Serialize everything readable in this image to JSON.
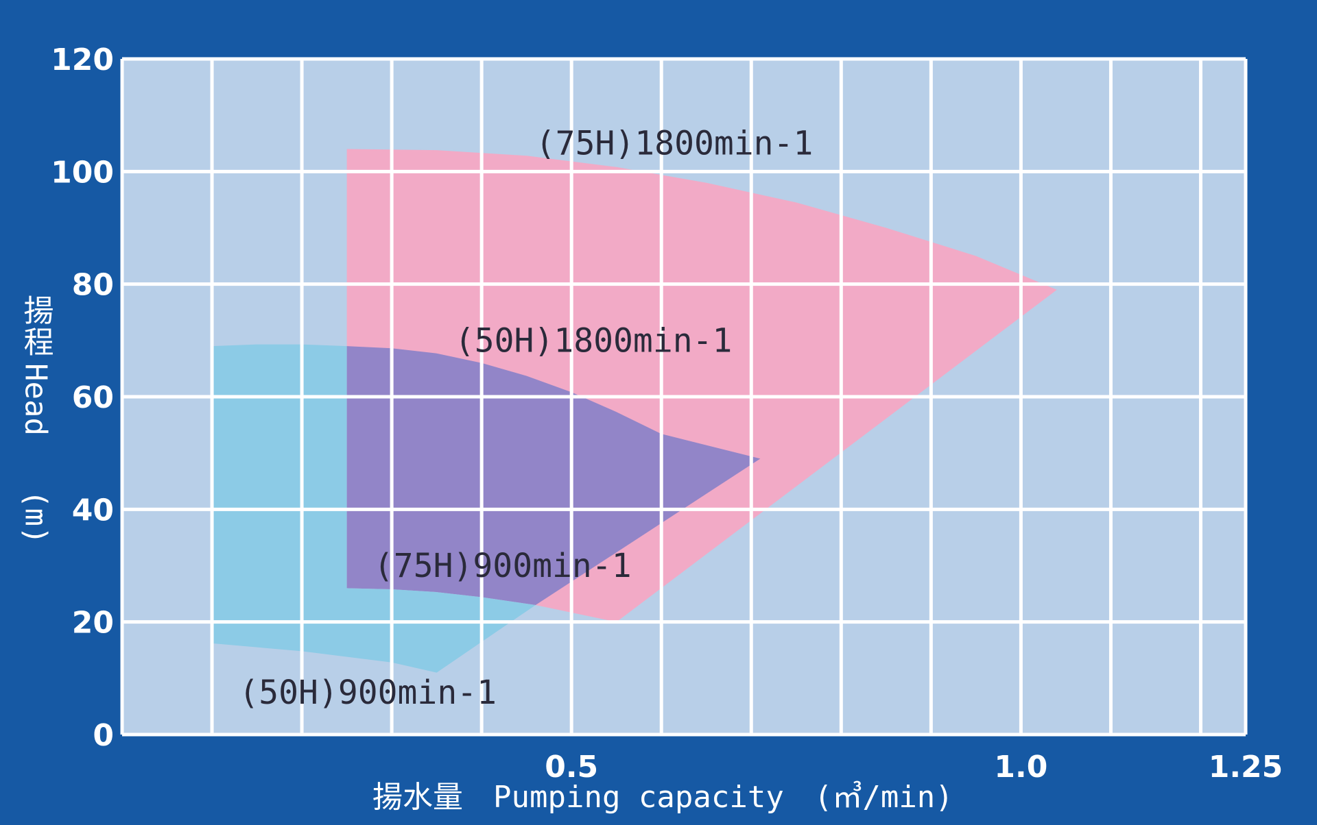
{
  "chart_data": {
    "type": "area",
    "xlabel": "揚水量　Pumping capacity　(㎥/min)",
    "ylabel_jp": "揚程",
    "ylabel_en": "Head",
    "ylabel_unit": "(m)",
    "xlim": [
      0,
      1.25
    ],
    "ylim": [
      0,
      120
    ],
    "x_ticks": [
      {
        "value": 0.5,
        "label": "0.5"
      },
      {
        "value": 1.0,
        "label": "1.0"
      },
      {
        "value": 1.25,
        "label": "1.25"
      }
    ],
    "y_ticks": [
      {
        "value": 0,
        "label": "0"
      },
      {
        "value": 20,
        "label": "20"
      },
      {
        "value": 40,
        "label": "40"
      },
      {
        "value": 60,
        "label": "60"
      },
      {
        "value": 80,
        "label": "80"
      },
      {
        "value": 100,
        "label": "100"
      },
      {
        "value": 120,
        "label": "120"
      }
    ],
    "grid": true,
    "grid_x_step": 0.1,
    "grid_y_step": 20,
    "colors": {
      "background": "#1659a4",
      "plot": "#b8cfe8",
      "grid": "#ffffff",
      "text": "#ffffff",
      "label_text": "#2a2a3a"
    },
    "series": [
      {
        "name": "(75H)1800min-1",
        "color": "#f2aac6",
        "label_at": [
          0.46,
          103
        ],
        "boundary": [
          [
            0.25,
            104
          ],
          [
            0.35,
            103.8
          ],
          [
            0.45,
            102.8
          ],
          [
            0.55,
            100.8
          ],
          [
            0.65,
            98
          ],
          [
            0.75,
            94.5
          ],
          [
            0.85,
            90
          ],
          [
            0.95,
            85
          ],
          [
            1.04,
            79
          ],
          [
            0.55,
            20
          ],
          [
            0.46,
            23
          ],
          [
            0.4,
            24.4
          ],
          [
            0.35,
            25.3
          ],
          [
            0.3,
            25.8
          ],
          [
            0.25,
            26
          ],
          [
            0.25,
            69
          ]
        ]
      },
      {
        "name": "(50H)1800min-1",
        "color": "#9285c8",
        "label_at": [
          0.37,
          68
        ],
        "boundary": [
          [
            0.25,
            69
          ],
          [
            0.3,
            68.6
          ],
          [
            0.35,
            67.7
          ],
          [
            0.4,
            66
          ],
          [
            0.45,
            63.7
          ],
          [
            0.5,
            60.8
          ],
          [
            0.55,
            57.3
          ],
          [
            0.6,
            53.4
          ],
          [
            0.71,
            49
          ],
          [
            0.46,
            23
          ],
          [
            0.4,
            24.4
          ],
          [
            0.35,
            25.3
          ],
          [
            0.3,
            25.8
          ],
          [
            0.25,
            26
          ]
        ]
      },
      {
        "name": "(75H)900min-1",
        "color": "#8ccbe6",
        "label_at": [
          0.28,
          28
        ],
        "boundary": [
          [
            0.1,
            69
          ],
          [
            0.15,
            69.3
          ],
          [
            0.2,
            69.3
          ],
          [
            0.25,
            69
          ],
          [
            0.25,
            26
          ],
          [
            0.3,
            25.8
          ],
          [
            0.35,
            25.3
          ],
          [
            0.4,
            24.4
          ],
          [
            0.46,
            23
          ],
          [
            0.35,
            11
          ],
          [
            0.3,
            12.8
          ],
          [
            0.2,
            14.8
          ],
          [
            0.1,
            16.2
          ]
        ]
      },
      {
        "name": "(50H)900min-1",
        "color": "#8ccbe6",
        "label_at": [
          0.13,
          5.5
        ],
        "boundary": []
      }
    ]
  }
}
